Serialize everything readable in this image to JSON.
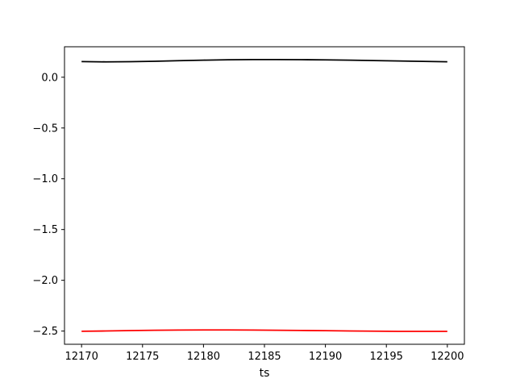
{
  "chart_data": {
    "type": "line",
    "title": "",
    "xlabel": "ts",
    "ylabel": "",
    "xlim": [
      12168.6,
      12201.4
    ],
    "ylim": [
      -2.63,
      0.3
    ],
    "xticks": [
      12170,
      12175,
      12180,
      12185,
      12190,
      12195,
      12200
    ],
    "xtick_labels": [
      "12170",
      "12175",
      "12180",
      "12185",
      "12190",
      "12195",
      "12200"
    ],
    "yticks": [
      0.0,
      -0.5,
      -1.0,
      -1.5,
      -2.0,
      -2.5
    ],
    "ytick_labels": [
      "0.0",
      "−0.5",
      "−1.0",
      "−1.5",
      "−2.0",
      "−2.5"
    ],
    "grid": false,
    "legend": "none",
    "series": [
      {
        "color": "#000000",
        "x": [
          12170,
          12172,
          12174,
          12176,
          12178,
          12180,
          12182,
          12184,
          12186,
          12188,
          12190,
          12192,
          12194,
          12196,
          12198,
          12200
        ],
        "y": [
          0.154,
          0.151,
          0.153,
          0.157,
          0.163,
          0.168,
          0.172,
          0.174,
          0.174,
          0.173,
          0.171,
          0.168,
          0.164,
          0.16,
          0.156,
          0.152
        ]
      },
      {
        "color": "#ff0000",
        "x": [
          12170,
          12172,
          12174,
          12176,
          12178,
          12180,
          12182,
          12184,
          12186,
          12188,
          12190,
          12192,
          12194,
          12196,
          12198,
          12200
        ],
        "y": [
          -2.502,
          -2.499,
          -2.495,
          -2.492,
          -2.49,
          -2.489,
          -2.489,
          -2.49,
          -2.492,
          -2.494,
          -2.496,
          -2.499,
          -2.501,
          -2.503,
          -2.503,
          -2.503
        ]
      }
    ]
  }
}
